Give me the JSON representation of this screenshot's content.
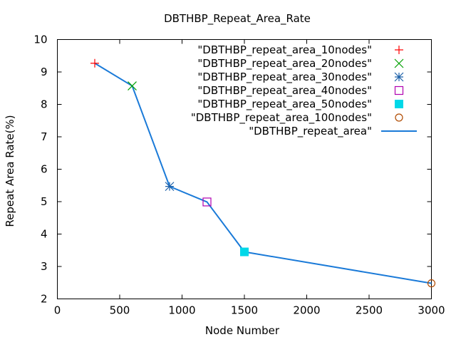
{
  "chart_data": {
    "type": "line",
    "title": "DBTHBP_Repeat_Area_Rate",
    "xlabel": "Node Number",
    "ylabel": "Repeat Area Rate(%)",
    "xlim": [
      0,
      3000
    ],
    "ylim": [
      2,
      10
    ],
    "xticks": [
      0,
      500,
      1000,
      1500,
      2000,
      2500,
      3000
    ],
    "yticks": [
      2,
      3,
      4,
      5,
      6,
      7,
      8,
      9,
      10
    ],
    "grid": false,
    "legend_position": "top-right",
    "series": [
      {
        "name": "\"DBTHBP_repeat_area_10nodes\"",
        "marker": "plus",
        "color": "#ff0000",
        "x": [
          300
        ],
        "y": [
          9.27
        ]
      },
      {
        "name": "\"DBTHBP_repeat_area_20nodes\"",
        "marker": "cross",
        "color": "#00a000",
        "x": [
          600
        ],
        "y": [
          8.57
        ]
      },
      {
        "name": "\"DBTHBP_repeat_area_30nodes\"",
        "marker": "star",
        "color": "#1a5fa8",
        "x": [
          900
        ],
        "y": [
          5.47
        ]
      },
      {
        "name": "\"DBTHBP_repeat_area_40nodes\"",
        "marker": "square-open",
        "color": "#b000b0",
        "x": [
          1200
        ],
        "y": [
          4.99
        ]
      },
      {
        "name": "\"DBTHBP_repeat_area_50nodes\"",
        "marker": "square-filled",
        "color": "#00d8e8",
        "x": [
          1500
        ],
        "y": [
          3.45
        ]
      },
      {
        "name": "\"DBTHBP_repeat_area_100nodes\"",
        "marker": "circle-open",
        "color": "#b04a00",
        "x": [
          3000
        ],
        "y": [
          2.48
        ]
      },
      {
        "name": "\"DBTHBP_repeat_area\"",
        "marker": "line",
        "color": "#1a7ad8",
        "x": [
          300,
          600,
          900,
          1200,
          1500,
          3000
        ],
        "y": [
          9.27,
          8.57,
          5.47,
          4.99,
          3.45,
          2.48
        ]
      }
    ]
  }
}
